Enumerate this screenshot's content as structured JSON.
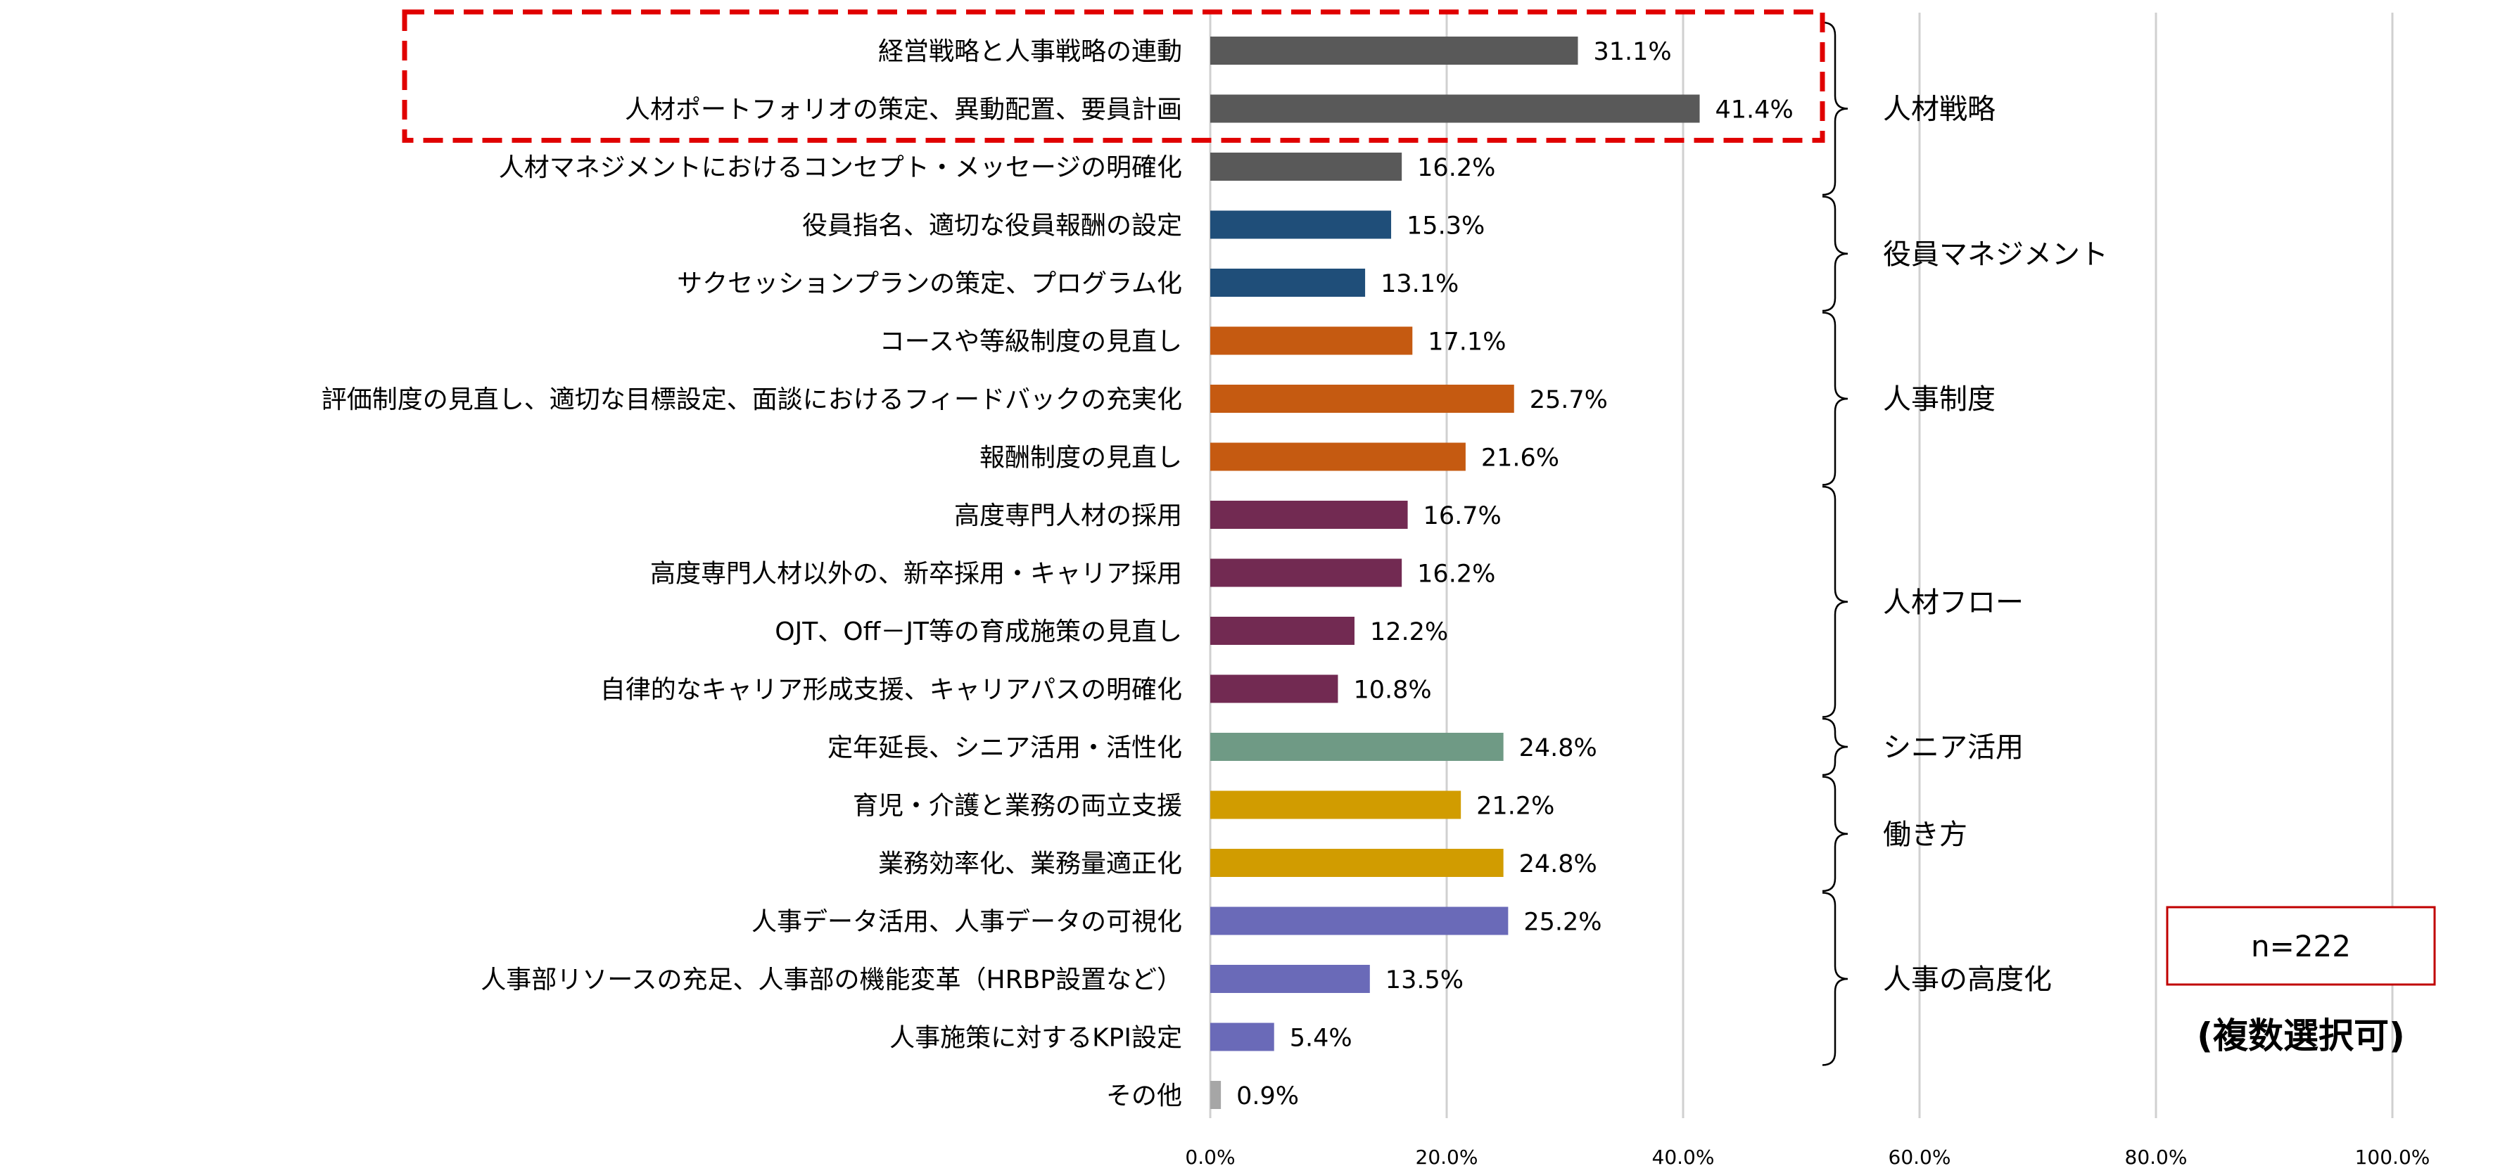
{
  "chart_data": {
    "type": "bar",
    "orientation": "horizontal",
    "categories": [
      "経営戦略と人事戦略の連動",
      "人材ポートフォリオの策定、異動配置、要員計画",
      "人材マネジメントにおけるコンセプト・メッセージの明確化",
      "役員指名、適切な役員報酬の設定",
      "サクセッションプランの策定、プログラム化",
      "コースや等級制度の見直し",
      "評価制度の見直し、適切な目標設定、面談におけるフィードバックの充実化",
      "報酬制度の見直し",
      "高度専門人材の採用",
      "高度専門人材以外の、新卒採用・キャリア採用",
      "OJT、Off－JT等の育成施策の見直し",
      "自律的なキャリア形成支援、キャリアパスの明確化",
      "定年延長、シニア活用・活性化",
      "育児・介護と業務の両立支援",
      "業務効率化、業務量適正化",
      "人事データ活用、人事データの可視化",
      "人事部リソースの充足、人事部の機能変革（HRBP設置など）",
      "人事施策に対するKPI設定",
      "その他"
    ],
    "values": [
      31.1,
      41.4,
      16.2,
      15.3,
      13.1,
      17.1,
      25.7,
      21.6,
      16.7,
      16.2,
      12.2,
      10.8,
      24.8,
      21.2,
      24.8,
      25.2,
      13.5,
      5.4,
      0.9
    ],
    "value_labels": [
      "31.1%",
      "41.4%",
      "16.2%",
      "15.3%",
      "13.1%",
      "17.1%",
      "25.7%",
      "21.6%",
      "16.7%",
      "16.2%",
      "12.2%",
      "10.8%",
      "24.8%",
      "21.2%",
      "24.8%",
      "25.2%",
      "13.5%",
      "5.4%",
      "0.9%"
    ],
    "bar_colors": [
      "#595959",
      "#595959",
      "#595959",
      "#1f4e79",
      "#1f4e79",
      "#c55a11",
      "#c55a11",
      "#c55a11",
      "#722a52",
      "#722a52",
      "#722a52",
      "#722a52",
      "#6f9a85",
      "#d19c00",
      "#d19c00",
      "#6a6ab8",
      "#6a6ab8",
      "#6a6ab8",
      "#a6a6a6"
    ],
    "xlim": [
      0,
      100
    ],
    "x_ticks": [
      0,
      20,
      40,
      60,
      80,
      100
    ],
    "x_tick_labels": [
      "0.0%",
      "20.0%",
      "40.0%",
      "60.0%",
      "80.0%",
      "100.0%"
    ],
    "grid": "vertical",
    "groups": [
      {
        "label": "人材戦略",
        "first": 0,
        "last": 2
      },
      {
        "label": "役員マネジメント",
        "first": 3,
        "last": 4
      },
      {
        "label": "人事制度",
        "first": 5,
        "last": 7
      },
      {
        "label": "人材フロー",
        "first": 8,
        "last": 11
      },
      {
        "label": "シニア活用",
        "first": 12,
        "last": 12
      },
      {
        "label": "働き方",
        "first": 13,
        "last": 14
      },
      {
        "label": "人事の高度化",
        "first": 15,
        "last": 17
      }
    ],
    "highlight": {
      "first": 0,
      "last": 1,
      "color": "#e00000"
    },
    "annotations": {
      "n_label": "n=222",
      "note": "(複数選択可)",
      "box_color": "#c00000"
    }
  }
}
